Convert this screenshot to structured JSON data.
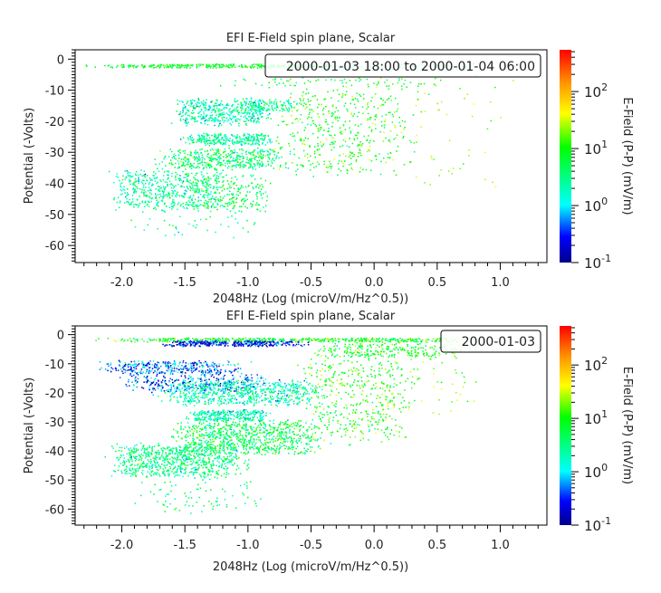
{
  "colormap": [
    "#00008b",
    "#0000ff",
    "#00ffff",
    "#00ff00",
    "#ffff00",
    "#ff9900",
    "#ff0000"
  ],
  "chart_data": [
    {
      "type": "scatter",
      "title": "EFI  E-Field spin plane, Scalar",
      "xlabel": "2048Hz (Log (microV/m/Hz^0.5))",
      "ylabel": "Potential (-Volts)",
      "legend": "2000-01-03 18:00 to 2000-01-04 06:00",
      "legend_placement": "top-right",
      "xlim": [
        -2.37,
        1.37
      ],
      "ylim": [
        -65.5,
        3
      ],
      "x_ticks": [
        "-2.0",
        "-1.5",
        "-1.0",
        "-0.5",
        "0.0",
        "0.5",
        "1.0"
      ],
      "y_ticks": [
        "0",
        "-10",
        "-20",
        "-30",
        "-40",
        "-50",
        "-60"
      ],
      "colorbar": {
        "label": "E-Field (P-P) (mV/m)",
        "scale": "log",
        "range": [
          0.1,
          540
        ],
        "ticks": [
          "10^-1",
          "10^0",
          "10^1",
          "10^2"
        ]
      },
      "point_clusters": [
        {
          "x": [
            -2.2,
            -0.1
          ],
          "y": [
            -1.5,
            -2.8
          ],
          "logE": [
            0.9,
            0.2
          ],
          "n": 350
        },
        {
          "x": [
            -0.9,
            1.0
          ],
          "y": [
            -1,
            -4
          ],
          "logE": [
            0.2,
            0.3
          ],
          "n": 180
        },
        {
          "x": [
            -1.2,
            0.6
          ],
          "y": [
            -6,
            -9
          ],
          "logE": [
            0.8,
            0.3
          ],
          "n": 70
        },
        {
          "x": [
            -1.6,
            -0.8
          ],
          "y": [
            -13,
            -22
          ],
          "logE": [
            0.3,
            0.3
          ],
          "n": 450
        },
        {
          "x": [
            -1.1,
            -0.6
          ],
          "y": [
            -13,
            -17
          ],
          "logE": [
            0.5,
            0.3
          ],
          "n": 120
        },
        {
          "x": [
            -1.5,
            -0.8
          ],
          "y": [
            -24,
            -28
          ],
          "logE": [
            0.4,
            0.3
          ],
          "n": 300
        },
        {
          "x": [
            -1.7,
            -0.7
          ],
          "y": [
            -29,
            -36
          ],
          "logE": [
            0.6,
            0.3
          ],
          "n": 450
        },
        {
          "x": [
            -2.1,
            -1.2
          ],
          "y": [
            -36,
            -50
          ],
          "logE": [
            0.4,
            0.3
          ],
          "n": 500
        },
        {
          "x": [
            -1.5,
            -0.8
          ],
          "y": [
            -38,
            -50
          ],
          "logE": [
            0.7,
            0.3
          ],
          "n": 250
        },
        {
          "x": [
            -0.8,
            0.3
          ],
          "y": [
            -10,
            -40
          ],
          "logE": [
            1.0,
            0.3
          ],
          "n": 450
        },
        {
          "x": [
            0.0,
            1.1
          ],
          "y": [
            -8,
            -45
          ],
          "logE": [
            1.3,
            0.3
          ],
          "n": 60
        },
        {
          "x": [
            -2.0,
            -0.8
          ],
          "y": [
            -50,
            -58
          ],
          "logE": [
            0.5,
            0.3
          ],
          "n": 40
        }
      ]
    },
    {
      "type": "scatter",
      "title": "EFI  E-Field spin plane, Scalar",
      "xlabel": "2048Hz (Log (microV/m/Hz^0.5))",
      "ylabel": "Potential (-Volts)",
      "legend": "2000-01-03",
      "legend_placement": "top-right",
      "xlim": [
        -2.37,
        1.37
      ],
      "ylim": [
        -65.5,
        3
      ],
      "x_ticks": [
        "-2.0",
        "-1.5",
        "-1.0",
        "-0.5",
        "0.0",
        "0.5",
        "1.0"
      ],
      "y_ticks": [
        "0",
        "-10",
        "-20",
        "-30",
        "-40",
        "-50",
        "-60"
      ],
      "colorbar": {
        "label": "E-Field (P-P) (mV/m)",
        "scale": "log",
        "range": [
          0.1,
          540
        ],
        "ticks": [
          "10^-1",
          "10^0",
          "10^1",
          "10^2"
        ]
      },
      "point_clusters": [
        {
          "x": [
            -2.2,
            0.9
          ],
          "y": [
            -1,
            -2.5
          ],
          "logE": [
            0.9,
            0.3
          ],
          "n": 500
        },
        {
          "x": [
            -1.7,
            -0.5
          ],
          "y": [
            -2,
            -4
          ],
          "logE": [
            -0.6,
            0.3
          ],
          "n": 350
        },
        {
          "x": [
            -0.5,
            0.8
          ],
          "y": [
            -3,
            -8
          ],
          "logE": [
            0.9,
            0.3
          ],
          "n": 250
        },
        {
          "x": [
            -2.2,
            -1.0
          ],
          "y": [
            -9,
            -14
          ],
          "logE": [
            -0.3,
            0.4
          ],
          "n": 350
        },
        {
          "x": [
            -2.0,
            -0.8
          ],
          "y": [
            -14,
            -20
          ],
          "logE": [
            -0.4,
            0.4
          ],
          "n": 300
        },
        {
          "x": [
            -1.7,
            -0.4
          ],
          "y": [
            -16,
            -25
          ],
          "logE": [
            0.3,
            0.3
          ],
          "n": 700
        },
        {
          "x": [
            -1.5,
            -0.8
          ],
          "y": [
            -26,
            -30
          ],
          "logE": [
            0.3,
            0.3
          ],
          "n": 300
        },
        {
          "x": [
            -1.6,
            -0.4
          ],
          "y": [
            -30,
            -42
          ],
          "logE": [
            0.7,
            0.3
          ],
          "n": 800
        },
        {
          "x": [
            -2.1,
            -1.0
          ],
          "y": [
            -38,
            -50
          ],
          "logE": [
            0.5,
            0.3
          ],
          "n": 800
        },
        {
          "x": [
            -0.6,
            0.3
          ],
          "y": [
            -8,
            -40
          ],
          "logE": [
            1.0,
            0.3
          ],
          "n": 450
        },
        {
          "x": [
            0.0,
            0.9
          ],
          "y": [
            -5,
            -30
          ],
          "logE": [
            1.3,
            0.3
          ],
          "n": 60
        },
        {
          "x": [
            -2.0,
            -0.8
          ],
          "y": [
            -50,
            -62
          ],
          "logE": [
            0.5,
            0.3
          ],
          "n": 80
        }
      ]
    }
  ]
}
